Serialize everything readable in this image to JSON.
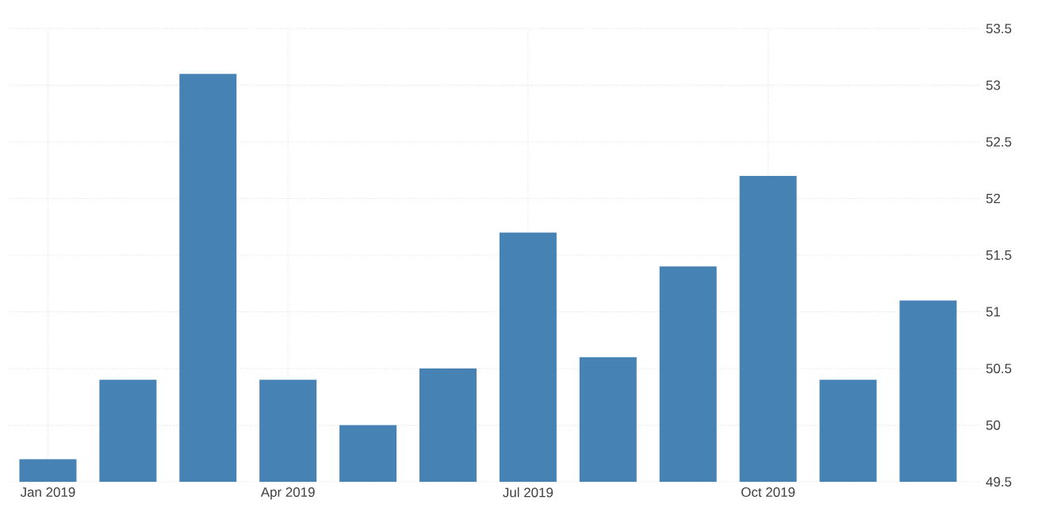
{
  "chart_data": {
    "type": "bar",
    "categories": [
      "Jan 2019",
      null,
      null,
      "Apr 2019",
      null,
      null,
      "Jul 2019",
      null,
      null,
      "Oct 2019",
      null,
      null
    ],
    "values": [
      49.7,
      50.4,
      53.1,
      50.4,
      50.0,
      50.5,
      51.7,
      50.6,
      51.4,
      52.2,
      50.4,
      51.1
    ],
    "color": "#4682b4",
    "ylim": [
      49.5,
      53.5
    ],
    "yticks": [
      49.5,
      50,
      50.5,
      51,
      51.5,
      52,
      52.5,
      53,
      53.5
    ],
    "grid": true
  }
}
